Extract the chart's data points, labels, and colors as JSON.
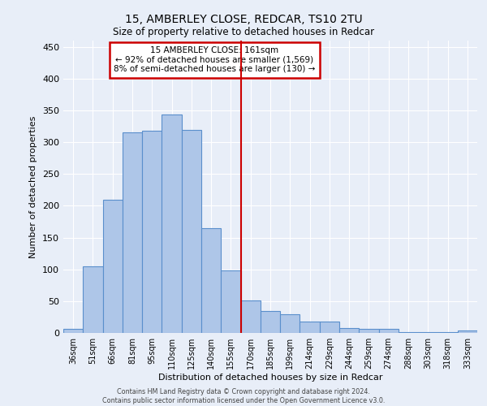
{
  "title": "15, AMBERLEY CLOSE, REDCAR, TS10 2TU",
  "subtitle": "Size of property relative to detached houses in Redcar",
  "xlabel": "Distribution of detached houses by size in Redcar",
  "ylabel": "Number of detached properties",
  "categories": [
    "36sqm",
    "51sqm",
    "66sqm",
    "81sqm",
    "95sqm",
    "110sqm",
    "125sqm",
    "140sqm",
    "155sqm",
    "170sqm",
    "185sqm",
    "199sqm",
    "214sqm",
    "229sqm",
    "244sqm",
    "259sqm",
    "274sqm",
    "288sqm",
    "303sqm",
    "318sqm",
    "333sqm"
  ],
  "values": [
    7,
    105,
    210,
    316,
    318,
    344,
    319,
    165,
    98,
    51,
    35,
    30,
    18,
    18,
    8,
    6,
    6,
    1,
    1,
    1,
    4
  ],
  "bar_color": "#aec6e8",
  "bar_edge_color": "#5a8fcc",
  "background_color": "#e8eef8",
  "grid_color": "#ffffff",
  "vline_color": "#cc0000",
  "annotation_title": "15 AMBERLEY CLOSE: 161sqm",
  "annotation_line2": "← 92% of detached houses are smaller (1,569)",
  "annotation_line3": "8% of semi-detached houses are larger (130) →",
  "annotation_box_color": "#cc0000",
  "ylim": [
    0,
    460
  ],
  "yticks": [
    0,
    50,
    100,
    150,
    200,
    250,
    300,
    350,
    400,
    450
  ],
  "footer_line1": "Contains HM Land Registry data © Crown copyright and database right 2024.",
  "footer_line2": "Contains public sector information licensed under the Open Government Licence v3.0."
}
